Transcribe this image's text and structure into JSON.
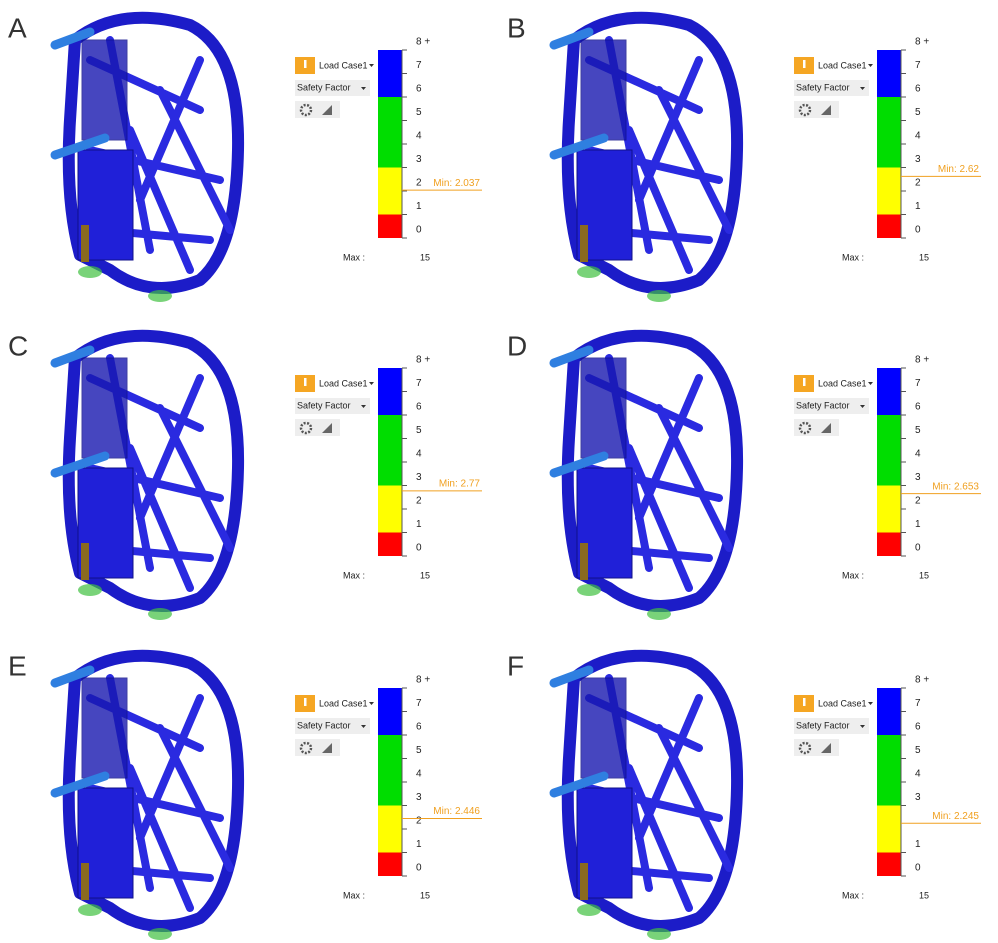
{
  "panels": [
    {
      "label": "A",
      "load_case": "Load Case1",
      "result": "Safety Factor",
      "ticks": [
        {
          "value": 8,
          "label": "8 +"
        },
        7,
        6,
        5,
        4,
        3,
        2,
        1,
        0
      ],
      "min": {
        "value": 2.037,
        "label": "Min: 2.037"
      },
      "max_label": "Max :",
      "max": 15
    },
    {
      "label": "B",
      "load_case": "Load Case1",
      "result": "Safety Factor",
      "ticks": [
        {
          "value": 8,
          "label": "8 +"
        },
        7,
        6,
        5,
        4,
        3,
        2,
        1,
        0
      ],
      "min": {
        "value": 2.62,
        "label": "Min: 2.62"
      },
      "max_label": "Max :",
      "max": 15
    },
    {
      "label": "C",
      "load_case": "Load Case1",
      "result": "Safety Factor",
      "ticks": [
        {
          "value": 8,
          "label": "8 +"
        },
        7,
        6,
        5,
        4,
        3,
        2,
        1,
        0
      ],
      "min": {
        "value": 2.77,
        "label": "Min: 2.77"
      },
      "max_label": "Max :",
      "max": 15
    },
    {
      "label": "D",
      "load_case": "Load Case1",
      "result": "Safety Factor",
      "ticks": [
        {
          "value": 8,
          "label": "8 +"
        },
        7,
        6,
        5,
        4,
        3,
        2,
        1,
        0
      ],
      "min": {
        "value": 2.653,
        "label": "Min: 2.653"
      },
      "max_label": "Max :",
      "max": 15
    },
    {
      "label": "E",
      "load_case": "Load Case1",
      "result": "Safety Factor",
      "ticks": [
        {
          "value": 8,
          "label": "8 +"
        },
        7,
        6,
        5,
        4,
        3,
        2,
        1,
        0
      ],
      "min": {
        "value": 2.446,
        "label": "Min: 2.446"
      },
      "max_label": "Max :",
      "max": 15
    },
    {
      "label": "F",
      "load_case": "Load Case1",
      "result": "Safety Factor",
      "ticks": [
        {
          "value": 8,
          "label": "8 +"
        },
        7,
        6,
        5,
        4,
        3,
        1,
        0
      ],
      "min": {
        "value": 2.245,
        "label": "Min: 2.245"
      },
      "max_label": "Max :",
      "max": 15
    }
  ],
  "scale": {
    "bands": [
      {
        "from": 0,
        "to": 1,
        "color": "#ff0000"
      },
      {
        "from": 1,
        "to": 3,
        "color": "#ffff00"
      },
      {
        "from": 3,
        "to": 6,
        "color": "#00dd00"
      },
      {
        "from": 6,
        "to": 8,
        "color": "#0000ff"
      }
    ]
  }
}
